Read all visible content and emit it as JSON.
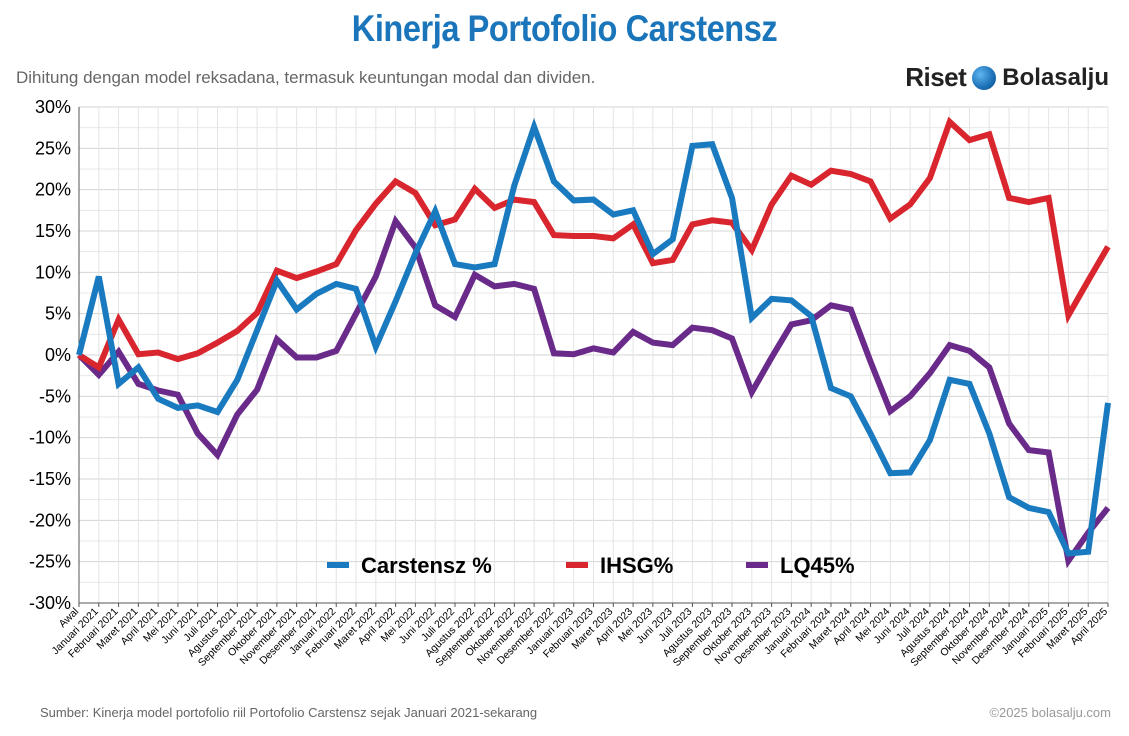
{
  "header": {
    "title": "Kinerja Portofolio Carstensz",
    "subtitle": "Dihitung dengan model reksadana, termasuk keuntungan modal dan dividen.",
    "brand_riset": "Riset",
    "brand_name": "Bolasalju"
  },
  "footer": {
    "source": "Sumber: Kinerja model portofolio riil Portofolio Carstensz sejak Januari 2021-sekarang",
    "copyright": "©2025 bolasalju.com"
  },
  "colors": {
    "carstensz": "#1a7abf",
    "ihsg": "#d9262e",
    "lq45": "#6a2a8a",
    "title": "#1a75bb"
  },
  "chart_data": {
    "type": "line",
    "title": "Kinerja Portofolio Carstensz",
    "xlabel": "",
    "ylabel": "",
    "ylim": [
      -30,
      30
    ],
    "yticks": [
      30,
      25,
      20,
      15,
      10,
      5,
      0,
      -5,
      -10,
      -15,
      -20,
      -25,
      -30
    ],
    "ytick_labels": [
      "30%",
      "25%",
      "20%",
      "15%",
      "10%",
      "5%",
      "0%",
      "-5%",
      "-10%",
      "-15%",
      "-20%",
      "-25%",
      "-30%"
    ],
    "grid": true,
    "legend_position": "bottom-center",
    "categories": [
      "Awal",
      "Januari 2021",
      "Februari 2021",
      "Maret 2021",
      "April 2021",
      "Mei 2021",
      "Juni 2021",
      "Juli 2021",
      "Agustus 2021",
      "September 2021",
      "Oktober 2021",
      "November 2021",
      "Desember 2021",
      "Januari 2022",
      "Februari 2022",
      "Maret 2022",
      "April 2022",
      "Mei 2022",
      "Juni 2022",
      "Juli 2022",
      "Agustus 2022",
      "September 2022",
      "Oktober 2022",
      "November 2022",
      "Desember 2022",
      "Januari 2023",
      "Februari 2023",
      "Maret 2023",
      "April 2023",
      "Mei 2023",
      "Juni 2023",
      "Juli 2023",
      "Agustus 2023",
      "September 2023",
      "Oktober 2023",
      "November 2023",
      "Desember 2023",
      "Januari 2024",
      "Februari 2024",
      "Maret 2024",
      "April 2024",
      "Mei 2024",
      "Juni 2024",
      "Juli 2024",
      "Agustus 2024",
      "September 2024",
      "Oktober 2024",
      "November 2024",
      "Desember 2024",
      "Januari 2025",
      "Februari 2025",
      "Maret 2025",
      "April 2025"
    ],
    "series": [
      {
        "name": "Carstensz %",
        "key": "carstensz",
        "values": [
          0,
          9.5,
          -3.5,
          -1.5,
          -5.3,
          -6.4,
          -6.1,
          -6.9,
          -3,
          3,
          9,
          5.5,
          7.4,
          8.6,
          8,
          1,
          6.5,
          12.3,
          17.4,
          11,
          10.6,
          11,
          20.5,
          27.6,
          21,
          18.7,
          18.8,
          17,
          17.5,
          12.2,
          14,
          25.3,
          25.5,
          19,
          4.5,
          6.8,
          6.6,
          4.7,
          -4,
          -5,
          -9.5,
          -14.3,
          -14.2,
          -10.3,
          -3,
          -3.5,
          -9.5,
          -17.2,
          -18.5,
          -19,
          -24,
          -23.8,
          -5.8
        ]
      },
      {
        "name": "IHSG%",
        "key": "ihsg",
        "values": [
          0,
          -1.5,
          4.3,
          0.1,
          0.3,
          -0.5,
          0.2,
          1.5,
          2.9,
          5.1,
          10.2,
          9.3,
          10.1,
          11,
          15.1,
          18.3,
          21,
          19.6,
          15.7,
          16.4,
          20.1,
          17.8,
          18.8,
          18.5,
          14.5,
          14.4,
          14.4,
          14.1,
          15.8,
          11.1,
          11.5,
          15.8,
          16.3,
          16,
          12.7,
          18.2,
          21.7,
          20.6,
          22.3,
          21.9,
          21,
          16.5,
          18.2,
          21.4,
          28.2,
          26,
          26.7,
          19,
          18.5,
          19,
          4.8,
          9,
          13.1
        ]
      },
      {
        "name": "LQ45%",
        "key": "lq45",
        "values": [
          0,
          -2.4,
          0.4,
          -3.5,
          -4.3,
          -4.8,
          -9.5,
          -12.1,
          -7.2,
          -4.2,
          1.9,
          -0.3,
          -0.3,
          0.5,
          5,
          9.5,
          16.2,
          13,
          6,
          4.6,
          9.7,
          8.3,
          8.6,
          8,
          0.2,
          0.1,
          0.8,
          0.3,
          2.8,
          1.5,
          1.2,
          3.3,
          3,
          2,
          -4.5,
          -0.3,
          3.7,
          4.2,
          6,
          5.5,
          -0.8,
          -6.8,
          -5,
          -2.2,
          1.2,
          0.5,
          -1.5,
          -8.3,
          -11.5,
          -11.8,
          -24.9,
          -21.5,
          -18.5
        ]
      }
    ]
  }
}
